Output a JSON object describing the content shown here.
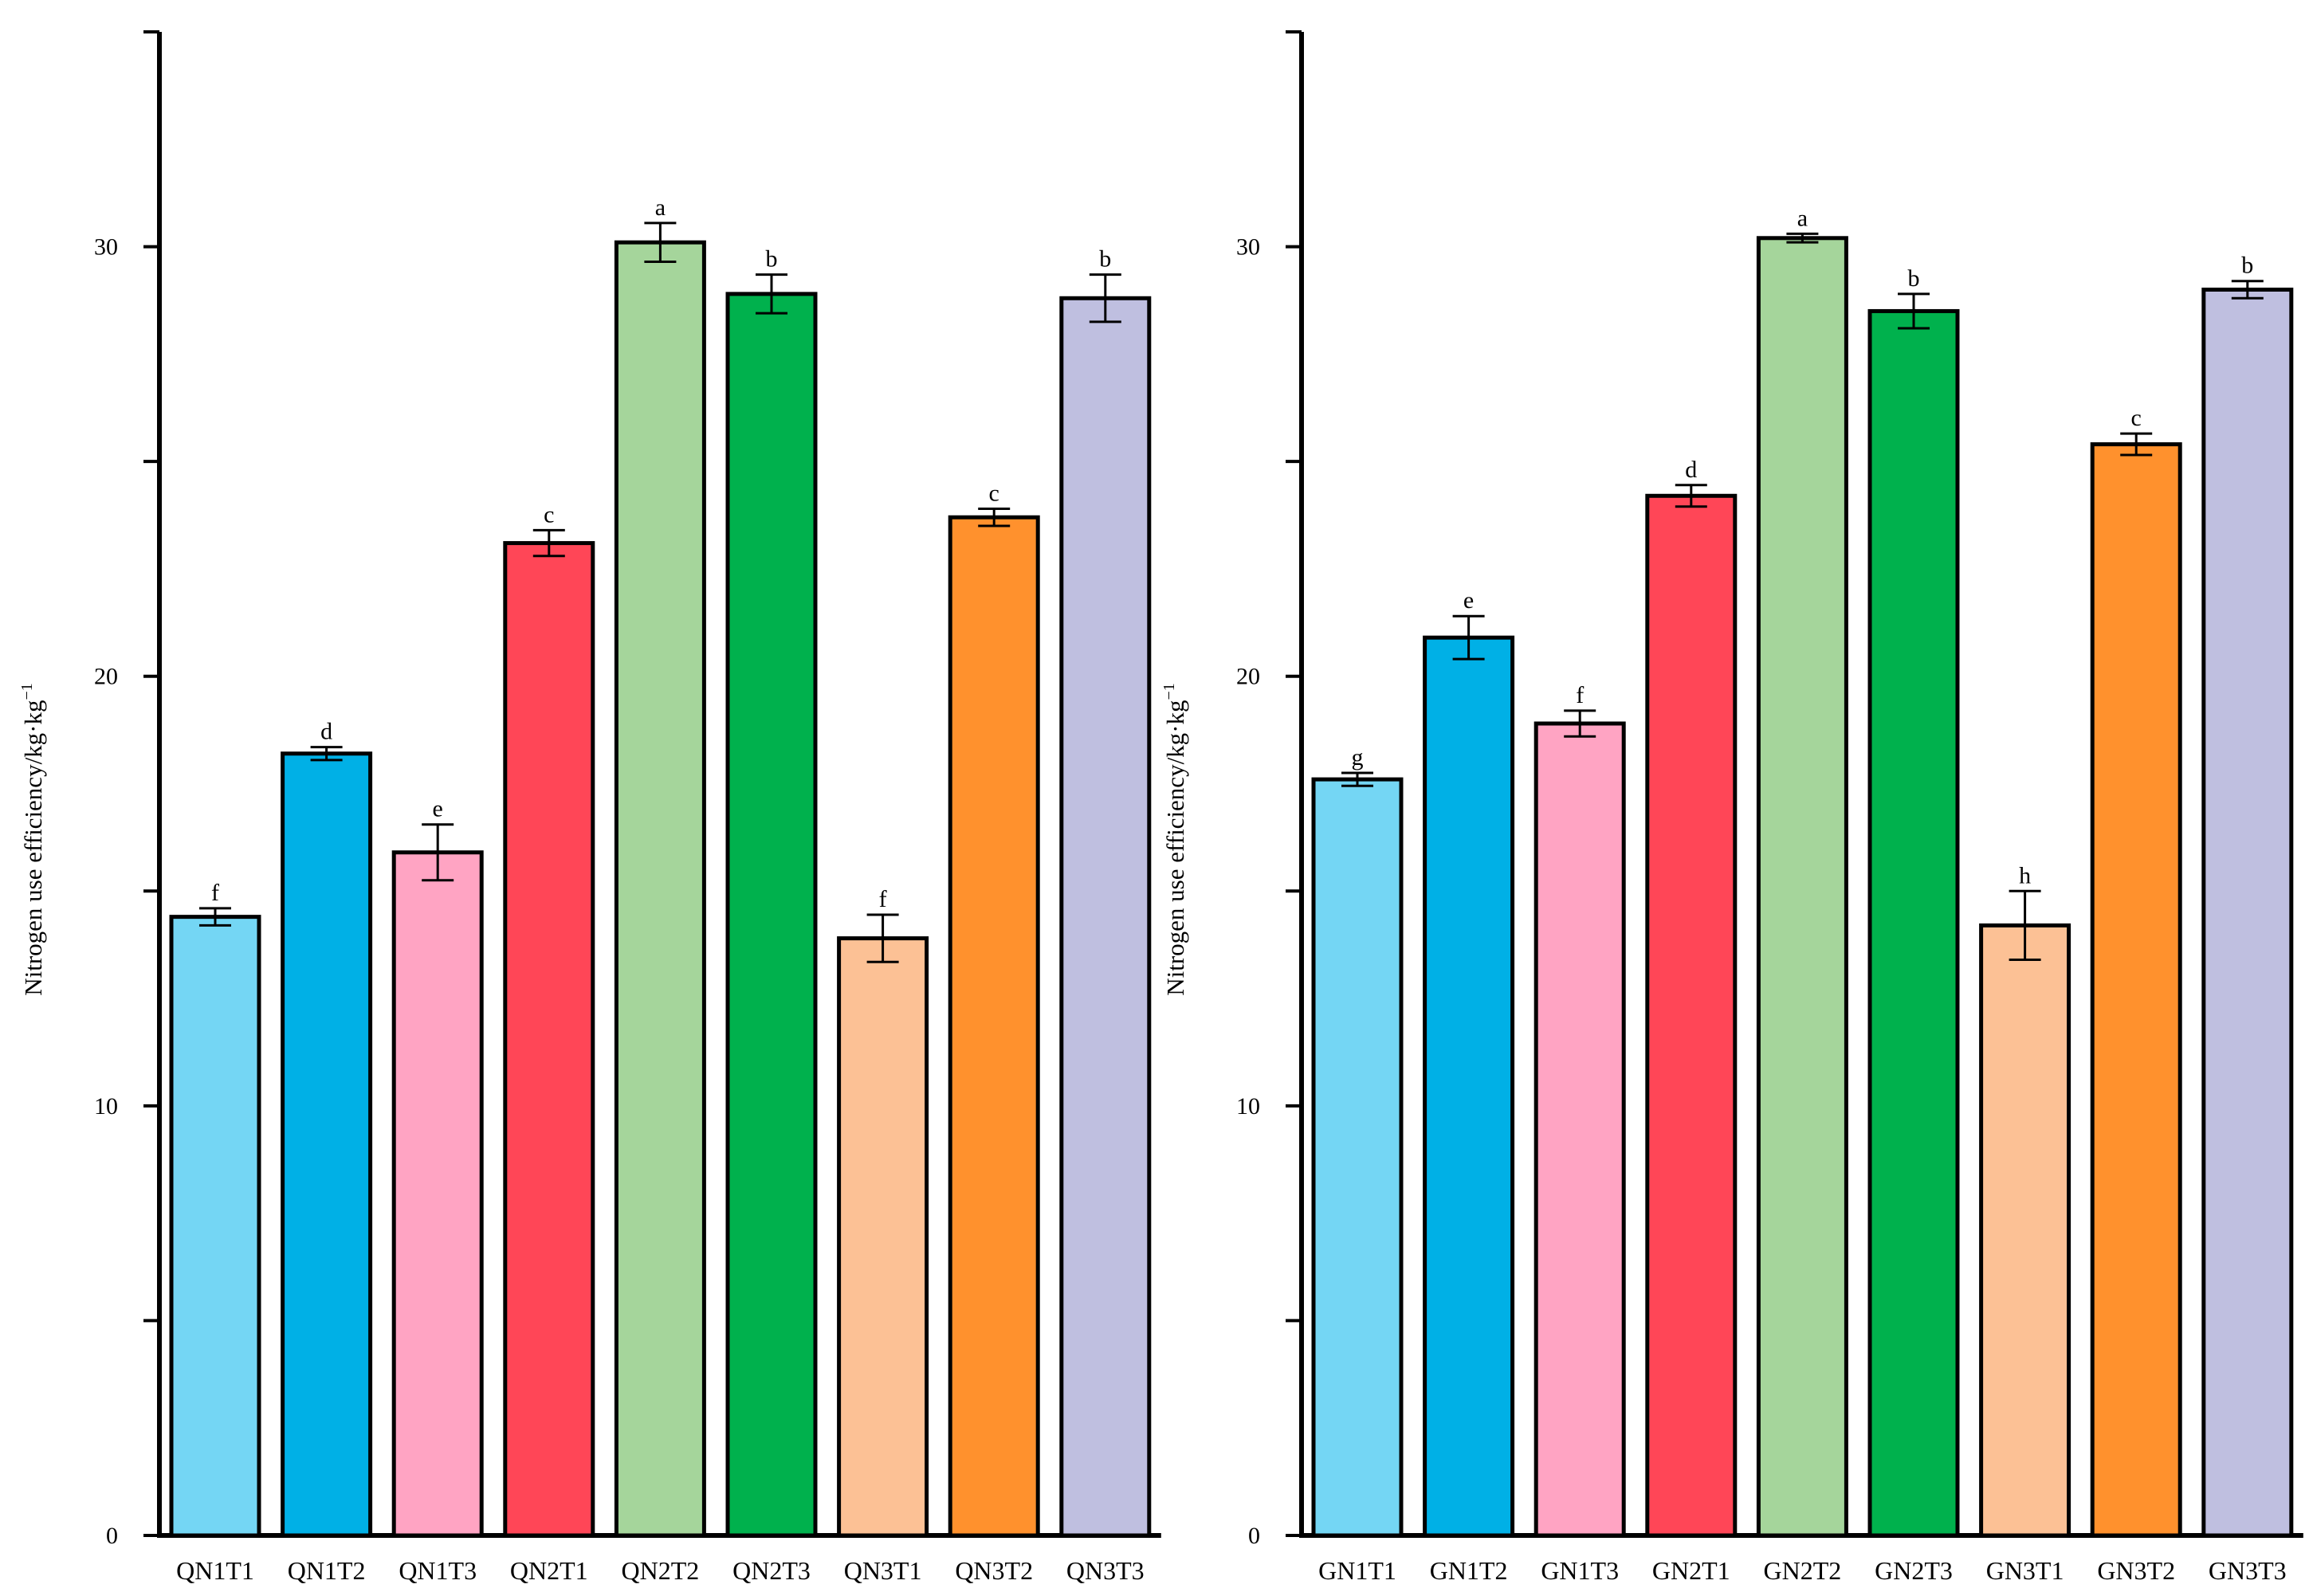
{
  "chart_data": [
    {
      "type": "bar",
      "title": "",
      "xlabel": "",
      "ylabel": "Nitrogen use efficiency/kg·kg",
      "ylabel_superscript": "−1",
      "ylim": [
        0,
        35
      ],
      "yticks": [
        0,
        10,
        20,
        30
      ],
      "categories": [
        "QN1T1",
        "QN1T2",
        "QN1T3",
        "QN2T1",
        "QN2T2",
        "QN2T3",
        "QN3T1",
        "QN3T2",
        "QN3T3"
      ],
      "values": [
        14.4,
        18.2,
        15.9,
        23.1,
        30.1,
        28.9,
        13.9,
        23.7,
        28.8
      ],
      "errors": [
        0.2,
        0.15,
        0.65,
        0.3,
        0.45,
        0.45,
        0.55,
        0.2,
        0.55
      ],
      "significance": [
        "f",
        "d",
        "e",
        "c",
        "a",
        "b",
        "f",
        "c",
        "b"
      ],
      "colors": [
        "#74d6f4",
        "#00b0e6",
        "#ffa4c3",
        "#ff4657",
        "#a5d59b",
        "#00b14d",
        "#fcc195",
        "#ff912d",
        "#bfbfe0"
      ]
    },
    {
      "type": "bar",
      "title": "",
      "xlabel": "",
      "ylabel": "Nitrogen use efficiency/kg·kg",
      "ylabel_superscript": "−1",
      "ylim": [
        0,
        35
      ],
      "yticks": [
        0,
        10,
        20,
        30
      ],
      "categories": [
        "GN1T1",
        "GN1T2",
        "GN1T3",
        "GN2T1",
        "GN2T2",
        "GN2T3",
        "GN3T1",
        "GN3T2",
        "GN3T3"
      ],
      "values": [
        17.6,
        20.9,
        18.9,
        24.2,
        30.2,
        28.5,
        14.2,
        25.4,
        29.0
      ],
      "errors": [
        0.15,
        0.5,
        0.3,
        0.25,
        0.1,
        0.4,
        0.8,
        0.25,
        0.2
      ],
      "significance": [
        "g",
        "e",
        "f",
        "d",
        "a",
        "b",
        "h",
        "c",
        "b"
      ],
      "colors": [
        "#74d6f4",
        "#00b0e6",
        "#ffa4c3",
        "#ff4657",
        "#a5d59b",
        "#00b14d",
        "#fcc195",
        "#ff912d",
        "#bfbfe0"
      ]
    }
  ]
}
